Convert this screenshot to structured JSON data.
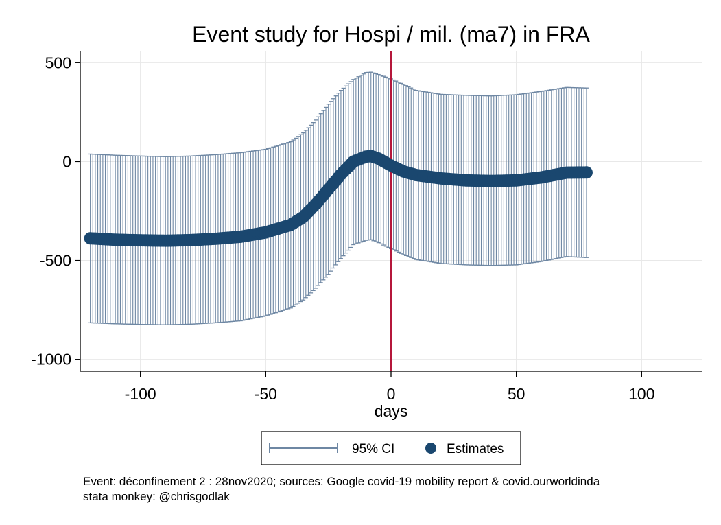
{
  "chart_data": {
    "type": "scatter",
    "title": "Event study for Hospi / mil. (ma7) in FRA",
    "xlabel": "days",
    "ylabel": "",
    "xlim": [
      -124,
      124
    ],
    "ylim": [
      -1060,
      560
    ],
    "x_ticks": [
      -100,
      -50,
      0,
      50,
      100
    ],
    "y_ticks": [
      500,
      0,
      -500,
      -1000
    ],
    "grid": true,
    "event_line": {
      "x": 0,
      "color": "#b5173b"
    },
    "legend": {
      "placement": "bottom",
      "entries": [
        "95% CI",
        "Estimates"
      ]
    },
    "series": [
      {
        "name": "Estimates",
        "kind": "points",
        "color": "#1a476f",
        "x": [
          -120,
          -110,
          -100,
          -90,
          -80,
          -70,
          -60,
          -50,
          -40,
          -35,
          -30,
          -25,
          -20,
          -15,
          -10,
          -8,
          -5,
          0,
          5,
          10,
          20,
          30,
          40,
          50,
          60,
          70,
          78
        ],
        "y": [
          -388,
          -395,
          -398,
          -400,
          -397,
          -390,
          -380,
          -358,
          -320,
          -280,
          -215,
          -140,
          -65,
          0,
          25,
          28,
          15,
          -20,
          -50,
          -68,
          -85,
          -95,
          -98,
          -95,
          -80,
          -56,
          -55
        ]
      },
      {
        "name": "95% CI",
        "kind": "band",
        "color": "#6e87a3",
        "x": [
          -120,
          -110,
          -100,
          -90,
          -80,
          -70,
          -60,
          -50,
          -40,
          -35,
          -30,
          -25,
          -20,
          -15,
          -10,
          -8,
          -5,
          0,
          5,
          10,
          20,
          30,
          40,
          50,
          60,
          70,
          78
        ],
        "upper": [
          38,
          32,
          28,
          25,
          28,
          35,
          45,
          62,
          100,
          145,
          210,
          290,
          360,
          415,
          450,
          452,
          440,
          418,
          390,
          360,
          340,
          335,
          332,
          338,
          355,
          375,
          372
        ],
        "lower": [
          -815,
          -820,
          -823,
          -825,
          -822,
          -815,
          -805,
          -780,
          -740,
          -700,
          -640,
          -570,
          -490,
          -420,
          -398,
          -395,
          -410,
          -440,
          -470,
          -495,
          -515,
          -522,
          -525,
          -522,
          -505,
          -480,
          -485
        ]
      }
    ],
    "notes": [
      "Event: déconfinement 2 : 28nov2020; sources: Google covid-19 mobility report & covid.ourworldinda",
      "stata monkey: @chrisgodlak"
    ]
  }
}
